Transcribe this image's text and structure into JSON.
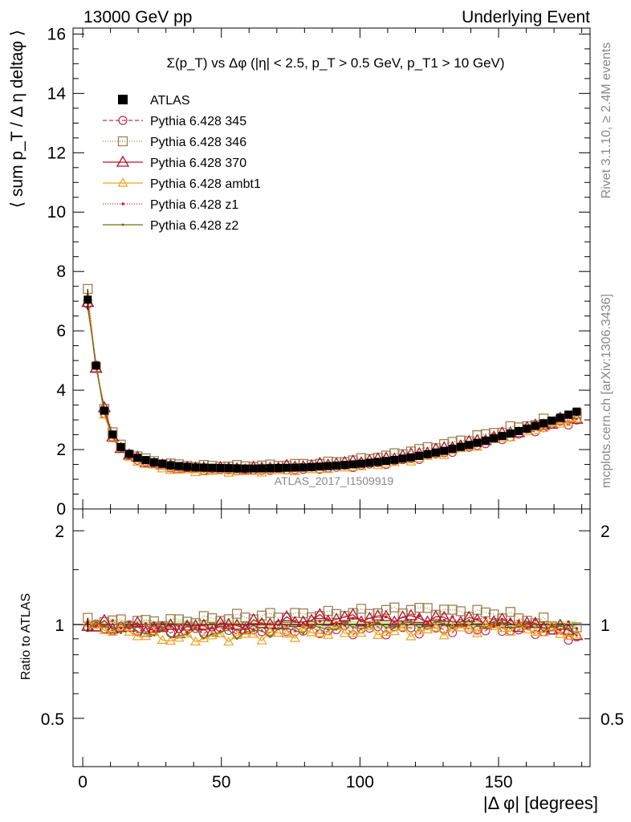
{
  "header": {
    "left": "13000 GeV pp",
    "right": "Underlying Event"
  },
  "side_labels": {
    "rivet": "Rivet 3.1.10, ≥ 2.4M events",
    "mcplots": "mcplots.cern.ch [arXiv:1306.3436]"
  },
  "watermark": "ATLAS_2017_I1509919",
  "chart_data": {
    "type": "line",
    "title": "Σ(p_T) vs Δφ (|η| < 2.5, p_T > 0.5 GeV, p_T1 > 10 GeV)",
    "xlabel": "|Δ φ| [degrees]",
    "ylabel": "⟨ sum p_T / Δ η deltaφ ⟩",
    "ratio_ylabel": "Ratio to ATLAS",
    "xlim": [
      -3.5,
      183
    ],
    "ylim": [
      0,
      16.2
    ],
    "ratio_ylim": [
      0.35,
      2.35
    ],
    "x_ticks": [
      "0",
      "50",
      "100",
      "150"
    ],
    "y_ticks": [
      "0",
      "2",
      "4",
      "6",
      "8",
      "10",
      "12",
      "14",
      "16"
    ],
    "ratio_ticks": [
      "0.5",
      "1",
      "2"
    ],
    "legend_position": "top-left",
    "reference": {
      "name": "ATLAS",
      "x_range": [
        1.8,
        178.2
      ],
      "n_points": 60,
      "anchors_x": [
        1.8,
        4.8,
        7.8,
        10.8,
        13.8,
        16.8,
        19.8,
        25.8,
        31.8,
        40,
        60,
        80,
        90,
        100,
        110,
        120,
        130,
        140,
        150,
        160,
        170,
        178.2
      ],
      "anchors_y": [
        7.05,
        4.82,
        3.3,
        2.5,
        2.08,
        1.85,
        1.72,
        1.57,
        1.47,
        1.4,
        1.36,
        1.4,
        1.45,
        1.52,
        1.62,
        1.76,
        1.95,
        2.17,
        2.42,
        2.7,
        3.0,
        3.28
      ]
    },
    "series": [
      {
        "name": "Pythia 6.428 345",
        "color": "#c03050",
        "marker": "circle-open",
        "dash": "5,3",
        "ratio_x": [
          0,
          30,
          60,
          90,
          120,
          150,
          170,
          180
        ],
        "ratio_y": [
          0.98,
          0.97,
          0.96,
          0.96,
          0.97,
          0.97,
          0.95,
          0.9
        ]
      },
      {
        "name": "Pythia 6.428 346",
        "color": "#a08050",
        "marker": "square-open",
        "dash": "1,2",
        "ratio_x": [
          0,
          30,
          60,
          90,
          120,
          150,
          170,
          180
        ],
        "ratio_y": [
          1.02,
          1.02,
          1.06,
          1.08,
          1.12,
          1.08,
          1.0,
          0.93
        ]
      },
      {
        "name": "Pythia 6.428 370",
        "color": "#b01030",
        "marker": "triangle-open",
        "dash": "",
        "ratio_x": [
          0,
          30,
          60,
          90,
          120,
          150,
          170,
          180
        ],
        "ratio_y": [
          1.0,
          0.97,
          1.0,
          1.05,
          1.05,
          1.02,
          0.98,
          0.93
        ]
      },
      {
        "name": "Pythia 6.428 ambt1",
        "color": "#f0a020",
        "marker": "triangle-open-small",
        "dash": "",
        "ratio_x": [
          0,
          30,
          60,
          90,
          120,
          150,
          170,
          180
        ],
        "ratio_y": [
          1.0,
          0.9,
          0.92,
          0.95,
          0.95,
          0.98,
          0.95,
          0.92
        ]
      },
      {
        "name": "Pythia 6.428 z1",
        "color": "#d02020",
        "marker": "dot",
        "dash": "1,2",
        "ratio_x": [
          0,
          30,
          60,
          90,
          120,
          150,
          170,
          180
        ],
        "ratio_y": [
          1.01,
          0.97,
          0.98,
          1.02,
          1.03,
          1.03,
          1.0,
          0.97
        ]
      },
      {
        "name": "Pythia 6.428 z2",
        "color": "#707010",
        "marker": "dot-small",
        "dash": "",
        "ratio_x": [
          0,
          30,
          60,
          90,
          120,
          150,
          170,
          180
        ],
        "ratio_y": [
          1.0,
          0.93,
          0.94,
          0.98,
          1.0,
          1.0,
          0.98,
          0.95
        ]
      }
    ]
  }
}
